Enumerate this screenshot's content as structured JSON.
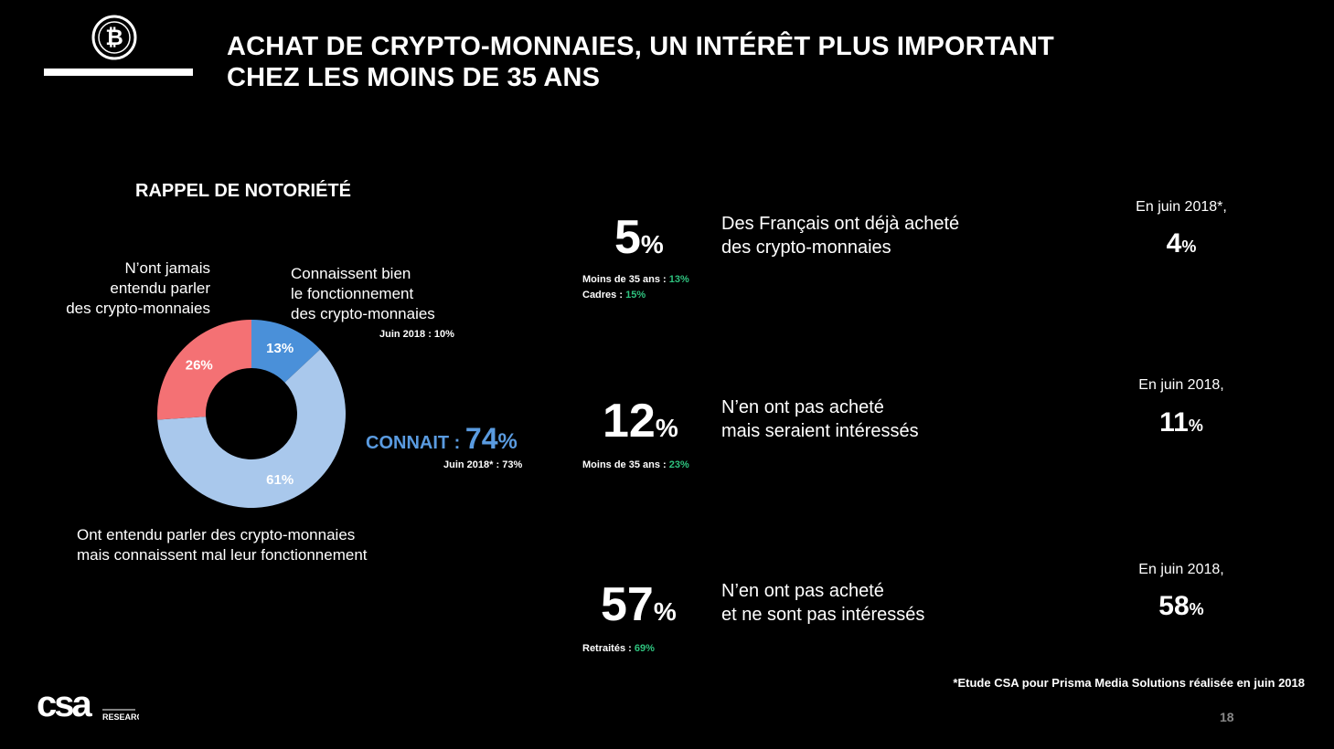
{
  "header": {
    "title_line1": "ACHAT DE CRYPTO-MONNAIES, UN INTÉRÊT PLUS IMPORTANT",
    "title_line2": "CHEZ LES MOINS DE 35 ANS",
    "logo_icon": "bitcoin-icon"
  },
  "left_panel": {
    "section_title": "RAPPEL DE NOTORIÉTÉ",
    "label_never": [
      "N’ont jamais",
      "entendu parler",
      "des crypto-monnaies"
    ],
    "label_know_well": [
      "Connaissent bien",
      "le fonctionnement",
      "des crypto-monnaies"
    ],
    "know_well_june_label": "Juin 2018 : ",
    "know_well_june_value": "10%",
    "label_heard": [
      "Ont entendu parler des crypto-monnaies",
      "mais connaissent mal leur fonctionnement"
    ],
    "connait_label": "CONNAIT : ",
    "connait_value": "74",
    "connait_pct": "%",
    "connait_june_label": "Juin 2018* : ",
    "connait_june_value": "73%"
  },
  "chart_data": {
    "type": "pie",
    "title": "RAPPEL DE NOTORIÉTÉ",
    "donut": true,
    "slices": [
      {
        "label": "Connaissent bien le fonctionnement des crypto-monnaies",
        "value": 13,
        "display": "13%",
        "color": "#4a90d9"
      },
      {
        "label": "Ont entendu parler des crypto-monnaies mais connaissent mal leur fonctionnement",
        "value": 61,
        "display": "61%",
        "color": "#a9c8ec"
      },
      {
        "label": "N’ont jamais entendu parler des crypto-monnaies",
        "value": 26,
        "display": "26%",
        "color": "#f47174"
      }
    ]
  },
  "stats": [
    {
      "value": "5",
      "pct": "%",
      "desc": [
        "Des Français ont déjà acheté",
        "des crypto-monnaies"
      ],
      "details": [
        {
          "label": "Moins de 35 ans : ",
          "value": "13%"
        },
        {
          "label": "Cadres : ",
          "value": "15%"
        }
      ],
      "june_label": "En juin 2018*,",
      "june_value": "4",
      "june_pct": "%"
    },
    {
      "value": "12",
      "pct": "%",
      "desc": [
        "N’en ont pas acheté",
        "mais seraient intéressés"
      ],
      "details": [
        {
          "label": "Moins de 35 ans : ",
          "value": "23%"
        }
      ],
      "june_label": "En juin 2018,",
      "june_value": "11",
      "june_pct": "%"
    },
    {
      "value": "57",
      "pct": "%",
      "desc": [
        "N’en ont pas acheté",
        "et ne sont pas intéressés"
      ],
      "details": [
        {
          "label": "Retraités : ",
          "value": "69%"
        }
      ],
      "june_label": "En juin 2018,",
      "june_value": "58",
      "june_pct": "%"
    }
  ],
  "footer": {
    "footnote": "*Etude CSA pour Prisma Media Solutions réalisée en juin 2018",
    "page_number": "18",
    "logo_text": "csa",
    "logo_sub": "RESEARCH"
  },
  "colors": {
    "accent_blue": "#5a9be0",
    "green": "#2ec27e",
    "slice_dark_blue": "#4a90d9",
    "slice_light_blue": "#a9c8ec",
    "slice_red": "#f47174"
  }
}
